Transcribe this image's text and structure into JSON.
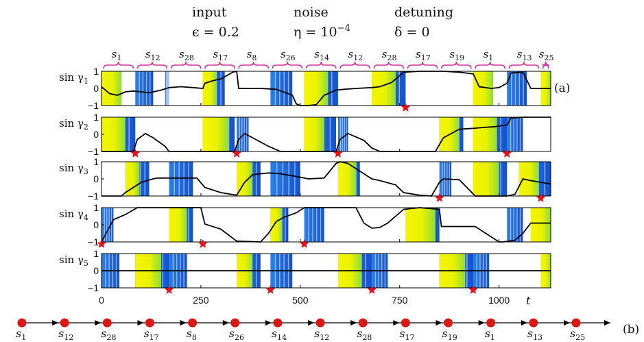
{
  "header": {
    "columns": [
      {
        "title": "input",
        "param": "ϵ = 0.2"
      },
      {
        "title": "noise",
        "param": "η = 10",
        "param_sup": "−4"
      },
      {
        "title": "detuning",
        "param": "δ = 0"
      }
    ]
  },
  "panel_labels": {
    "a": "(a)",
    "b": "(b)"
  },
  "chart_data": {
    "type": "line",
    "x_label": "t",
    "xlim": [
      0,
      1130
    ],
    "ylim": [
      -1,
      1
    ],
    "x_ticks": [
      0,
      250,
      500,
      750,
      1000
    ],
    "y_ticks": [
      -1,
      0,
      1
    ],
    "x_tick_labels": [
      "0",
      "250",
      "500",
      "750",
      "1000"
    ],
    "y_tick_labels": [
      "−1",
      "0",
      "1"
    ],
    "segments": [
      {
        "base": "s",
        "sub": "1",
        "start": 0,
        "end": 85
      },
      {
        "base": "s",
        "sub": "12",
        "start": 85,
        "end": 170
      },
      {
        "base": "s",
        "sub": "28",
        "start": 170,
        "end": 255
      },
      {
        "base": "s",
        "sub": "17",
        "start": 255,
        "end": 340
      },
      {
        "base": "s",
        "sub": "8",
        "start": 340,
        "end": 425
      },
      {
        "base": "s",
        "sub": "26",
        "start": 425,
        "end": 510
      },
      {
        "base": "s",
        "sub": "14",
        "start": 510,
        "end": 595
      },
      {
        "base": "s",
        "sub": "12",
        "start": 595,
        "end": 680
      },
      {
        "base": "s",
        "sub": "28",
        "start": 680,
        "end": 765
      },
      {
        "base": "s",
        "sub": "17",
        "start": 765,
        "end": 850
      },
      {
        "base": "s",
        "sub": "19",
        "start": 850,
        "end": 935
      },
      {
        "base": "s",
        "sub": "1",
        "start": 935,
        "end": 1020
      },
      {
        "base": "s",
        "sub": "13",
        "start": 1020,
        "end": 1105
      },
      {
        "base": "s",
        "sub": "25",
        "start": 1105,
        "end": 1130
      }
    ],
    "series": [
      {
        "label_base": "sin γ",
        "label_sub": "1",
        "x": [
          0,
          20,
          40,
          60,
          80,
          100,
          120,
          150,
          170,
          200,
          230,
          255,
          260,
          280,
          300,
          330,
          340,
          345,
          400,
          440,
          480,
          490,
          500,
          520,
          540,
          560,
          590,
          610,
          640,
          680,
          700,
          730,
          760,
          800,
          860,
          900,
          935,
          950,
          980,
          1000,
          1020,
          1030,
          1060,
          1080,
          1130
        ],
        "y": [
          0.1,
          -0.3,
          -0.4,
          -0.2,
          -0.15,
          -0.2,
          -0.25,
          -0.1,
          0.05,
          0.1,
          0.05,
          0.0,
          0.3,
          0.45,
          0.55,
          0.95,
          1.0,
          0.0,
          0.0,
          -0.05,
          -0.4,
          -0.9,
          -1.0,
          -1.0,
          -0.95,
          -0.4,
          -0.1,
          -0.05,
          0.0,
          0.05,
          0.1,
          0.35,
          0.95,
          1.0,
          1.0,
          0.95,
          0.85,
          0.1,
          0.0,
          0.05,
          0.3,
          0.9,
          0.95,
          0.0,
          0.0
        ]
      },
      {
        "label_base": "sin γ",
        "label_sub": "2",
        "x": [
          0,
          40,
          80,
          90,
          110,
          130,
          160,
          170,
          230,
          300,
          335,
          345,
          360,
          380,
          420,
          450,
          510,
          560,
          590,
          600,
          620,
          640,
          660,
          680,
          700,
          800,
          840,
          860,
          900,
          935,
          960,
          990,
          1020,
          1030,
          1060,
          1090,
          1130
        ],
        "y": [
          -1.0,
          -1.0,
          -1.0,
          -0.3,
          0.05,
          -0.2,
          -0.7,
          -1.0,
          -1.0,
          -1.0,
          -1.0,
          -0.3,
          0.05,
          -0.2,
          -0.7,
          -1.0,
          -1.0,
          -1.0,
          -1.0,
          -0.3,
          0.05,
          -0.15,
          -0.35,
          -0.8,
          -1.0,
          -1.0,
          -1.0,
          -0.2,
          0.3,
          0.35,
          0.4,
          0.45,
          0.55,
          0.95,
          1.0,
          1.0,
          1.0
        ]
      },
      {
        "label_base": "sin γ",
        "label_sub": "3",
        "x": [
          0,
          50,
          60,
          80,
          100,
          130,
          140,
          170,
          200,
          240,
          260,
          300,
          340,
          360,
          380,
          420,
          450,
          500,
          520,
          560,
          590,
          600,
          620,
          680,
          700,
          740,
          760,
          800,
          830,
          850,
          860,
          900,
          940,
          1020,
          1040,
          1060,
          1080,
          1130
        ],
        "y": [
          -1.0,
          -1.0,
          -0.8,
          -0.5,
          -0.2,
          0.0,
          0.05,
          0.05,
          0.05,
          0.05,
          -0.5,
          -0.8,
          -0.95,
          -0.2,
          0.25,
          0.35,
          0.3,
          0.1,
          0.0,
          0.05,
          0.9,
          1.0,
          0.9,
          0.0,
          -0.1,
          -0.35,
          -0.8,
          -0.95,
          -1.0,
          -0.2,
          0.0,
          -0.05,
          -1.0,
          -1.0,
          -0.9,
          0.0,
          -0.1,
          -0.3
        ]
      },
      {
        "label_base": "sin γ",
        "label_sub": "4",
        "x": [
          0,
          30,
          60,
          90,
          140,
          170,
          200,
          220,
          250,
          260,
          300,
          340,
          400,
          420,
          440,
          460,
          490,
          510,
          550,
          590,
          640,
          660,
          680,
          700,
          720,
          760,
          800,
          850,
          855,
          900,
          940,
          1000,
          1010,
          1040,
          1060,
          1080,
          1130
        ],
        "y": [
          -1.0,
          0.3,
          0.6,
          1.0,
          1.0,
          1.0,
          1.0,
          1.0,
          1.0,
          0.05,
          -0.25,
          -0.95,
          -1.0,
          -0.5,
          0.2,
          0.45,
          0.7,
          1.0,
          1.0,
          1.0,
          1.0,
          0.1,
          -0.2,
          -0.15,
          0.1,
          0.9,
          1.0,
          0.9,
          -0.1,
          -0.1,
          -0.1,
          -1.0,
          -1.0,
          -0.9,
          -0.5,
          0.1,
          0.1
        ]
      },
      {
        "label_base": "sin γ",
        "label_sub": "5",
        "x": [
          0,
          1130
        ],
        "y": [
          0.0,
          0.0
        ]
      }
    ],
    "markers": [
      {
        "panel": 1,
        "x": 765,
        "y": -1
      },
      {
        "panel": 2,
        "x": 85,
        "y": -1
      },
      {
        "panel": 2,
        "x": 340,
        "y": -1
      },
      {
        "panel": 2,
        "x": 595,
        "y": -1
      },
      {
        "panel": 2,
        "x": 1020,
        "y": -1
      },
      {
        "panel": 3,
        "x": 850,
        "y": -1
      },
      {
        "panel": 3,
        "x": 1105,
        "y": -1
      },
      {
        "panel": 4,
        "x": 0,
        "y": -1
      },
      {
        "panel": 4,
        "x": 255,
        "y": -1
      },
      {
        "panel": 4,
        "x": 510,
        "y": -1
      },
      {
        "panel": 5,
        "x": 170,
        "y": -1
      },
      {
        "panel": 5,
        "x": 425,
        "y": -1
      },
      {
        "panel": 5,
        "x": 680,
        "y": -1
      },
      {
        "panel": 5,
        "x": 935,
        "y": -1
      }
    ],
    "sequence": [
      {
        "base": "s",
        "sub": "1"
      },
      {
        "base": "s",
        "sub": "12"
      },
      {
        "base": "s",
        "sub": "28"
      },
      {
        "base": "s",
        "sub": "17"
      },
      {
        "base": "s",
        "sub": "8"
      },
      {
        "base": "s",
        "sub": "26"
      },
      {
        "base": "s",
        "sub": "14"
      },
      {
        "base": "s",
        "sub": "12"
      },
      {
        "base": "s",
        "sub": "28"
      },
      {
        "base": "s",
        "sub": "17"
      },
      {
        "base": "s",
        "sub": "19"
      },
      {
        "base": "s",
        "sub": "1"
      },
      {
        "base": "s",
        "sub": "13"
      },
      {
        "base": "s",
        "sub": "25"
      }
    ],
    "colors": {
      "yellow": "#f5f500",
      "green": "#9fe03a",
      "blue": "#1f66e0",
      "light_blue": "#3aa6f5",
      "curve": "#000000",
      "brace": "#d0349a",
      "marker": "#e8101a",
      "node": "#dd1616"
    }
  }
}
